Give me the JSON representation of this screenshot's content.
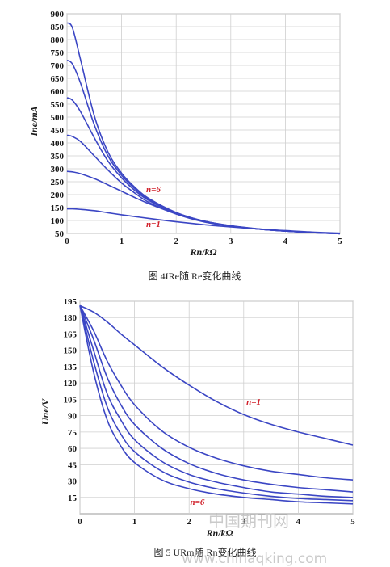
{
  "colors": {
    "line": "#3b46c4",
    "annotation": "#d0202a",
    "grid": "#cfcfcf",
    "plot_bg": "#ffffff"
  },
  "watermark": {
    "cn": "中国期刊网",
    "url": "www.chinaqking.com"
  },
  "chart_data": [
    {
      "type": "line",
      "caption": "图 4IRe随 Re变化曲线",
      "xlabel": "Rn/kΩ",
      "ylabel": "Ine/mA",
      "xlim": [
        0,
        5
      ],
      "ylim": [
        50,
        900
      ],
      "xticks": [
        "0",
        "1",
        "2",
        "3",
        "4",
        "5"
      ],
      "yticks": [
        "50",
        "100",
        "150",
        "200",
        "250",
        "300",
        "350",
        "400",
        "450",
        "500",
        "550",
        "600",
        "650",
        "700",
        "750",
        "800",
        "850",
        "900"
      ],
      "grid": true,
      "annotations": [
        {
          "text": "n=6",
          "x": 1.45,
          "y": 210
        },
        {
          "text": "n=1",
          "x": 1.45,
          "y": 75
        }
      ],
      "x": [
        0,
        0.1,
        0.25,
        0.5,
        0.75,
        1.0,
        1.25,
        1.5,
        2.0,
        2.5,
        3.0,
        3.5,
        4.0,
        4.5,
        5.0
      ],
      "series": [
        {
          "values": [
            145,
            145,
            143,
            138,
            130,
            122,
            115,
            108,
            95,
            84,
            75,
            67,
            61,
            55,
            51
          ]
        },
        {
          "values": [
            290,
            288,
            281,
            262,
            238,
            213,
            188,
            165,
            126,
            98,
            80,
            68,
            60,
            54,
            50
          ]
        },
        {
          "values": [
            430,
            425,
            405,
            350,
            295,
            245,
            205,
            170,
            125,
            95,
            78,
            67,
            59,
            53,
            49
          ]
        },
        {
          "values": [
            575,
            565,
            520,
            420,
            330,
            265,
            215,
            177,
            128,
            97,
            79,
            67,
            59,
            53,
            49
          ]
        },
        {
          "values": [
            720,
            705,
            630,
            470,
            350,
            275,
            222,
            181,
            130,
            98,
            79,
            67,
            59,
            53,
            49
          ]
        },
        {
          "values": [
            865,
            845,
            720,
            505,
            365,
            283,
            227,
            185,
            131,
            98,
            79,
            67,
            59,
            53,
            49
          ]
        }
      ]
    },
    {
      "type": "line",
      "caption": "图 5 URm随 Rn变化曲线",
      "xlabel": "Rn/kΩ",
      "ylabel": "Une/V",
      "xlim": [
        0,
        5
      ],
      "ylim": [
        0,
        195
      ],
      "xticks": [
        "0",
        "1",
        "2",
        "3",
        "4",
        "5"
      ],
      "yticks": [
        "15",
        "30",
        "45",
        "60",
        "75",
        "90",
        "105",
        "120",
        "135",
        "150",
        "165",
        "180",
        "195"
      ],
      "grid": true,
      "annotations": [
        {
          "text": "n=1",
          "x": 3.05,
          "y": 100
        },
        {
          "text": "n=6",
          "x": 2.02,
          "y": 8
        }
      ],
      "x": [
        0,
        0.25,
        0.5,
        0.75,
        1.0,
        1.5,
        2.0,
        2.5,
        3.0,
        3.5,
        4.0,
        4.5,
        5.0
      ],
      "series": [
        {
          "values": [
            191,
            185,
            176,
            165,
            155,
            135,
            118,
            103,
            91,
            82,
            75,
            69,
            63
          ]
        },
        {
          "values": [
            191,
            168,
            140,
            118,
            100,
            76,
            61,
            51,
            44,
            39,
            36,
            33,
            31
          ]
        },
        {
          "values": [
            191,
            160,
            125,
            100,
            82,
            60,
            46,
            37,
            31,
            27,
            24,
            22,
            20
          ]
        },
        {
          "values": [
            191,
            150,
            110,
            86,
            68,
            48,
            36,
            29,
            24,
            20,
            18,
            16,
            15
          ]
        },
        {
          "values": [
            191,
            140,
            98,
            73,
            57,
            39,
            29,
            23,
            19,
            16,
            14,
            13,
            12
          ]
        },
        {
          "values": [
            191,
            130,
            86,
            62,
            47,
            31,
            23,
            18,
            15,
            13,
            11,
            10,
            9
          ]
        }
      ]
    }
  ]
}
